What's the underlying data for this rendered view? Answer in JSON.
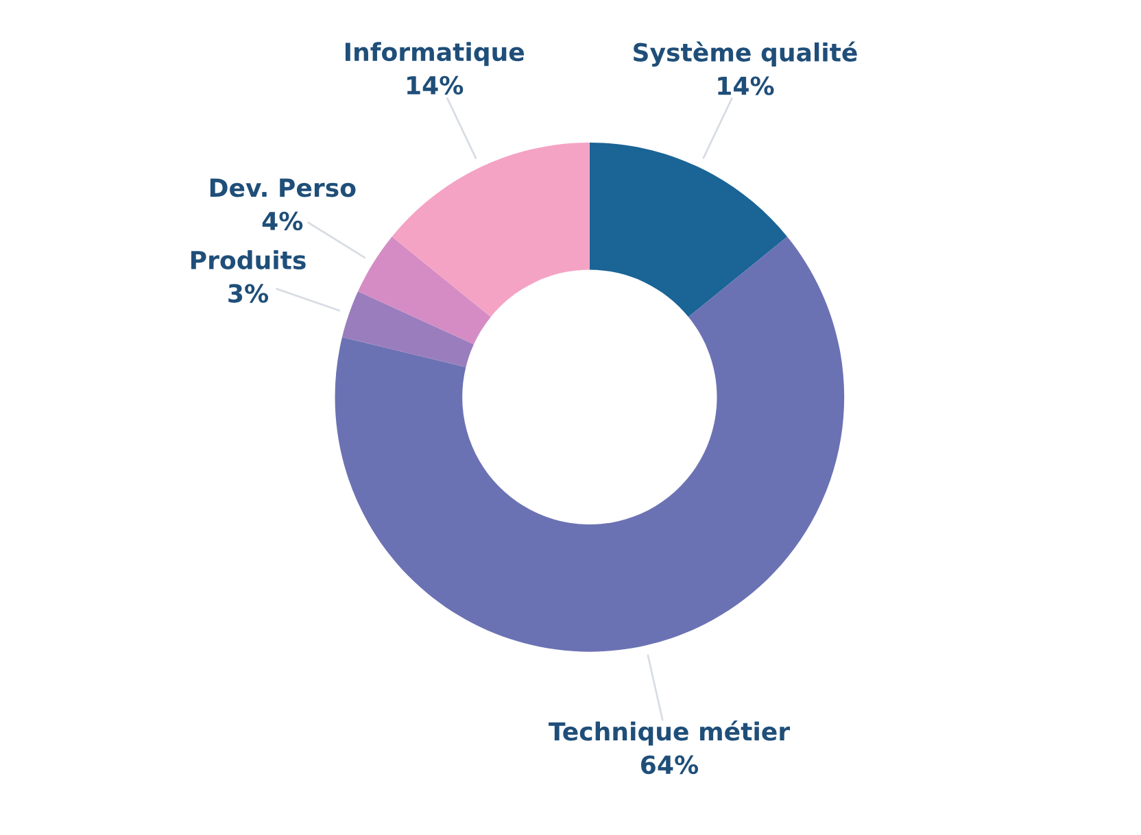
{
  "chart_data": {
    "type": "donut",
    "categories": [
      "Système qualité",
      "Technique métier",
      "Produits",
      "Dev. Perso",
      "Informatique"
    ],
    "values": [
      14,
      64,
      3,
      4,
      14
    ],
    "colors": [
      "#1a6496",
      "#6b72b3",
      "#9a7dbd",
      "#d58cc4",
      "#f4a3c4"
    ],
    "value_labels": [
      "14%",
      "64%",
      "3%",
      "4%",
      "14%"
    ],
    "legend": false
  }
}
